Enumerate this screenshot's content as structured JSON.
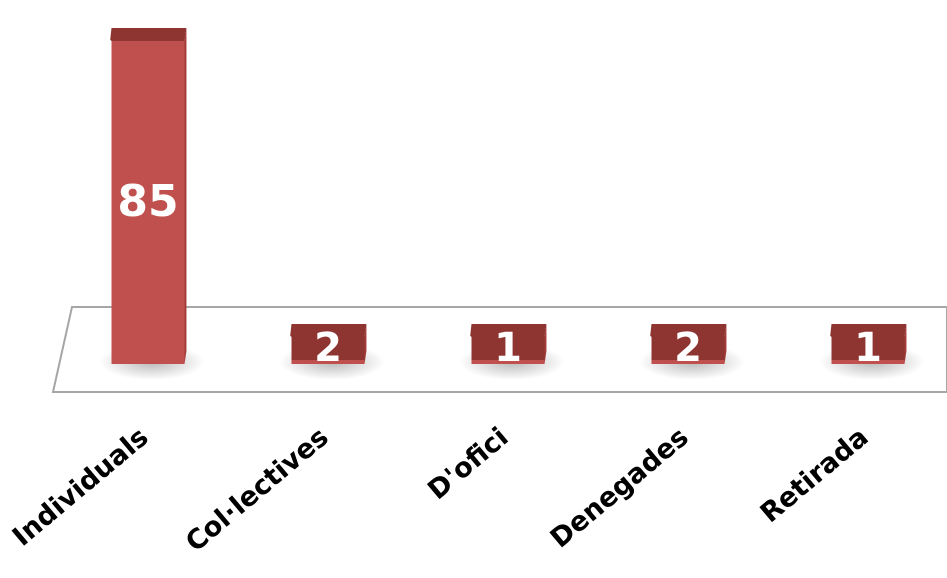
{
  "chart_data": {
    "type": "bar",
    "categories": [
      "Individuals",
      "Col·lectives",
      "D'ofici",
      "Denegades",
      "Retirada"
    ],
    "values": [
      85,
      2,
      1,
      2,
      1
    ],
    "title": "",
    "xlabel": "",
    "ylabel": "",
    "style": "3d",
    "data_labels": true,
    "grid": false,
    "legend": "none",
    "colors": {
      "bar_front": "#c0504d",
      "bar_top": "#8e3431",
      "bar_side": "#a33c39",
      "floor_stroke": "#a6a6a6",
      "label": "#ffffff",
      "category_text": "#000000"
    }
  }
}
